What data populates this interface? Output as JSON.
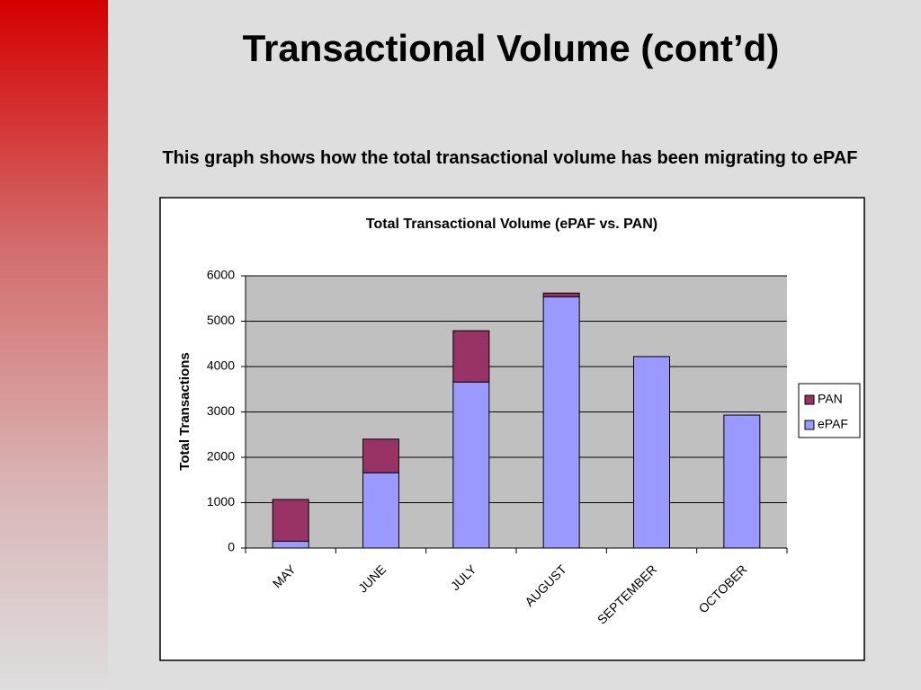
{
  "slide": {
    "title": "Transactional Volume (cont’d)",
    "subtitle": "This graph shows how the total transactional volume has been migrating to ePAF"
  },
  "chart_data": {
    "type": "stacked_bar",
    "title": "Total Transactional Volume (ePAF vs. PAN)",
    "y_label": "Total Transactions",
    "categories": [
      "MAY",
      "JUNE",
      "JULY",
      "AUGUST",
      "SEPTEMBER",
      "OCTOBER"
    ],
    "series": [
      {
        "name": "ePAF",
        "color": "#9999ff",
        "values": [
          150,
          1660,
          3660,
          5540,
          4220,
          2930
        ]
      },
      {
        "name": "PAN",
        "color": "#993366",
        "values": [
          920,
          740,
          1130,
          80,
          0,
          0
        ]
      }
    ],
    "ylim": [
      0,
      6000
    ],
    "yticks": [
      0,
      1000,
      2000,
      3000,
      4000,
      5000,
      6000
    ],
    "grid": true,
    "legend": "right"
  }
}
